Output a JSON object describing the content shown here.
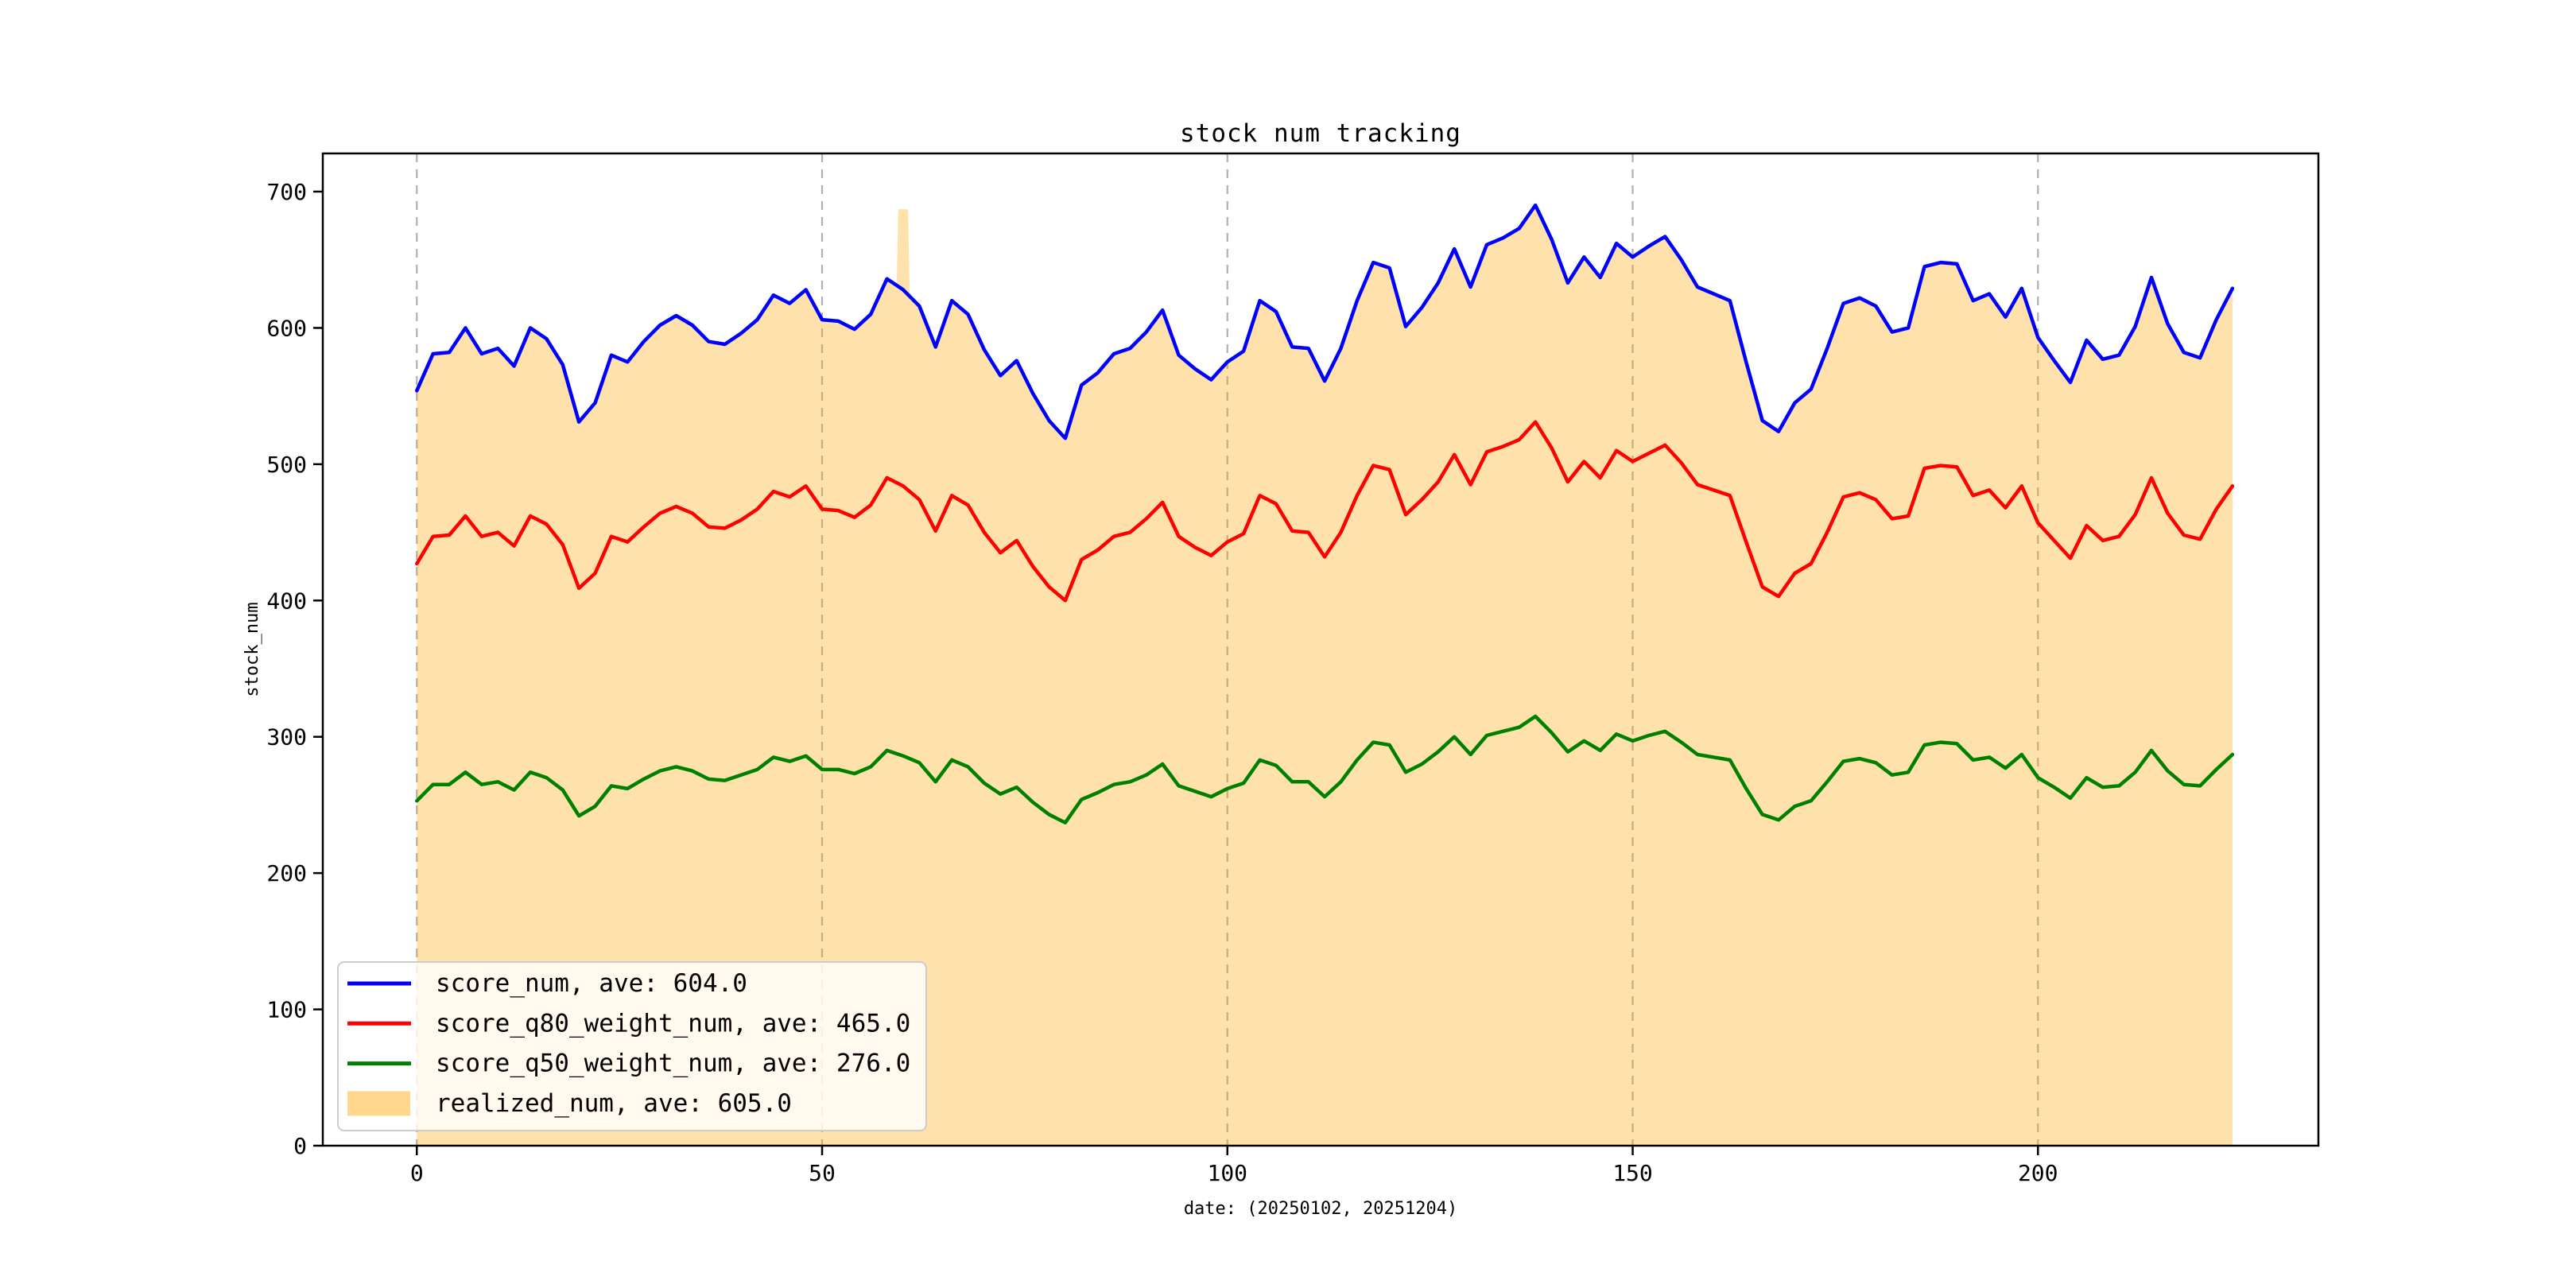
{
  "title": "stock num tracking",
  "axes": {
    "xlabel": "date: (20250102, 20251204)",
    "ylabel": "stock_num",
    "x_tick_labels": [
      "0",
      "50",
      "100",
      "150",
      "200"
    ],
    "y_tick_labels": [
      "0",
      "100",
      "200",
      "300",
      "400",
      "500",
      "600",
      "700"
    ]
  },
  "colors": {
    "score_num": "#0000ff",
    "score_q80_weight_num": "#ff0000",
    "score_q50_weight_num": "#008000",
    "realized_num": "#ffa500",
    "grid": "#b0b0b0",
    "spine": "#000000",
    "text": "#000000",
    "legend_border": "#cccccc"
  },
  "legend": {
    "entries": [
      {
        "label": "score_num, ave: 604.0",
        "color": "#0000ff",
        "type": "line"
      },
      {
        "label": "score_q80_weight_num, ave: 465.0",
        "color": "#ff0000",
        "type": "line"
      },
      {
        "label": "score_q50_weight_num, ave: 276.0",
        "color": "#008000",
        "type": "line"
      },
      {
        "label": "realized_num, ave: 605.0",
        "color": "#ffa500",
        "type": "patch"
      }
    ]
  },
  "chart_data": {
    "type": "line",
    "title": "stock num tracking",
    "xlabel": "date: (20250102, 20251204)",
    "ylabel": "stock_num",
    "xlim": [
      -11.6,
      234.6
    ],
    "ylim": [
      0,
      728
    ],
    "x_ticks": [
      0,
      50,
      100,
      150,
      200
    ],
    "y_ticks": [
      0,
      100,
      200,
      300,
      400,
      500,
      600,
      700
    ],
    "grid": "vertical-dashed",
    "legend_position": "lower-left",
    "x_start": 0,
    "x_step": 2,
    "series": [
      {
        "name": "score_num",
        "average": 604.0,
        "color": "#0000ff",
        "values": [
          554,
          581,
          582,
          600,
          581,
          585,
          572,
          600,
          592,
          573,
          531,
          545,
          580,
          575,
          590,
          602,
          609,
          602,
          590,
          588,
          596,
          606,
          624,
          618,
          628,
          606,
          605,
          599,
          610,
          636,
          628,
          616,
          586,
          620,
          610,
          584,
          565,
          576,
          552,
          532,
          519,
          558,
          567,
          581,
          585,
          597,
          613,
          580,
          570,
          562,
          575,
          583,
          620,
          612,
          586,
          585,
          561,
          585,
          620,
          648,
          644,
          601,
          615,
          633,
          658,
          630,
          661,
          666,
          673,
          690,
          665,
          633,
          652,
          637,
          662,
          652,
          660,
          667,
          650,
          630,
          625,
          620,
          575,
          532,
          524,
          545,
          555,
          585,
          618,
          622,
          616,
          597,
          600,
          645,
          648,
          647,
          620,
          625,
          608,
          629,
          593,
          576,
          560,
          591,
          577,
          580,
          601,
          637,
          603,
          582,
          578,
          606,
          629
        ]
      },
      {
        "name": "score_q80_weight_num",
        "average": 465.0,
        "color": "#ff0000",
        "values": [
          427,
          447,
          448,
          462,
          447,
          450,
          440,
          462,
          456,
          441,
          409,
          420,
          447,
          443,
          454,
          464,
          469,
          464,
          454,
          453,
          459,
          467,
          480,
          476,
          484,
          467,
          466,
          461,
          470,
          490,
          484,
          474,
          451,
          477,
          470,
          450,
          435,
          444,
          425,
          410,
          400,
          430,
          437,
          447,
          450,
          460,
          472,
          447,
          439,
          433,
          443,
          449,
          477,
          471,
          451,
          450,
          432,
          450,
          477,
          499,
          496,
          463,
          474,
          487,
          507,
          485,
          509,
          513,
          518,
          531,
          512,
          487,
          502,
          490,
          510,
          502,
          508,
          514,
          501,
          485,
          481,
          477,
          443,
          410,
          403,
          420,
          427,
          450,
          476,
          479,
          474,
          460,
          462,
          497,
          499,
          498,
          477,
          481,
          468,
          484,
          457,
          444,
          431,
          455,
          444,
          447,
          463,
          490,
          464,
          448,
          445,
          467,
          484
        ]
      },
      {
        "name": "score_q50_weight_num",
        "average": 276.0,
        "color": "#008000",
        "values": [
          253,
          265,
          265,
          274,
          265,
          267,
          261,
          274,
          270,
          261,
          242,
          249,
          264,
          262,
          269,
          275,
          278,
          275,
          269,
          268,
          272,
          276,
          285,
          282,
          286,
          276,
          276,
          273,
          278,
          290,
          286,
          281,
          267,
          283,
          278,
          266,
          258,
          263,
          252,
          243,
          237,
          254,
          259,
          265,
          267,
          272,
          280,
          264,
          260,
          256,
          262,
          266,
          283,
          279,
          267,
          267,
          256,
          267,
          283,
          296,
          294,
          274,
          280,
          289,
          300,
          287,
          301,
          304,
          307,
          315,
          303,
          289,
          297,
          290,
          302,
          297,
          301,
          304,
          296,
          287,
          285,
          283,
          262,
          243,
          239,
          249,
          253,
          267,
          282,
          284,
          281,
          272,
          274,
          294,
          296,
          295,
          283,
          285,
          277,
          287,
          270,
          263,
          255,
          270,
          263,
          264,
          274,
          290,
          275,
          265,
          264,
          276,
          287
        ]
      }
    ],
    "area_series": {
      "name": "realized_num",
      "average": 605.0,
      "color": "#ffa500",
      "alpha": 0.33,
      "baseline": 0,
      "x": [
        0,
        2,
        4,
        6,
        8,
        10,
        12,
        14,
        16,
        18,
        20,
        22,
        24,
        26,
        28,
        30,
        32,
        34,
        36,
        38,
        40,
        42,
        44,
        46,
        48,
        50,
        52,
        54,
        56,
        58,
        59.2,
        59.4,
        60.6,
        60.8,
        62,
        64,
        66,
        68,
        70,
        72,
        74,
        76,
        78,
        80,
        82,
        84,
        86,
        88,
        90,
        92,
        94,
        96,
        98,
        100,
        102,
        104,
        106,
        108,
        110,
        112,
        114,
        116,
        118,
        120,
        122,
        124,
        126,
        128,
        130,
        132,
        134,
        136,
        138,
        140,
        142,
        144,
        146,
        148,
        150,
        152,
        154,
        156,
        158,
        160,
        162,
        164,
        166,
        168,
        170,
        172,
        174,
        176,
        178,
        180,
        182,
        184,
        186,
        188,
        190,
        192,
        194,
        196,
        198,
        200,
        202,
        204,
        206,
        208,
        210,
        212,
        214,
        216,
        218,
        220,
        222,
        224
      ],
      "values": [
        554,
        581,
        582,
        600,
        581,
        585,
        572,
        600,
        592,
        573,
        531,
        545,
        580,
        575,
        590,
        602,
        609,
        602,
        590,
        588,
        596,
        606,
        624,
        618,
        628,
        606,
        605,
        599,
        610,
        636,
        632,
        687,
        687,
        626,
        616,
        586,
        620,
        610,
        584,
        565,
        576,
        552,
        532,
        519,
        558,
        567,
        581,
        585,
        597,
        613,
        580,
        570,
        562,
        575,
        583,
        620,
        612,
        586,
        585,
        561,
        585,
        620,
        648,
        644,
        601,
        615,
        633,
        658,
        630,
        661,
        666,
        673,
        690,
        665,
        633,
        652,
        637,
        662,
        652,
        660,
        667,
        650,
        630,
        625,
        620,
        575,
        532,
        524,
        545,
        555,
        585,
        618,
        622,
        616,
        597,
        600,
        645,
        648,
        647,
        620,
        625,
        608,
        629,
        593,
        576,
        560,
        591,
        577,
        580,
        601,
        637,
        603,
        582,
        578,
        606,
        629
      ]
    }
  }
}
